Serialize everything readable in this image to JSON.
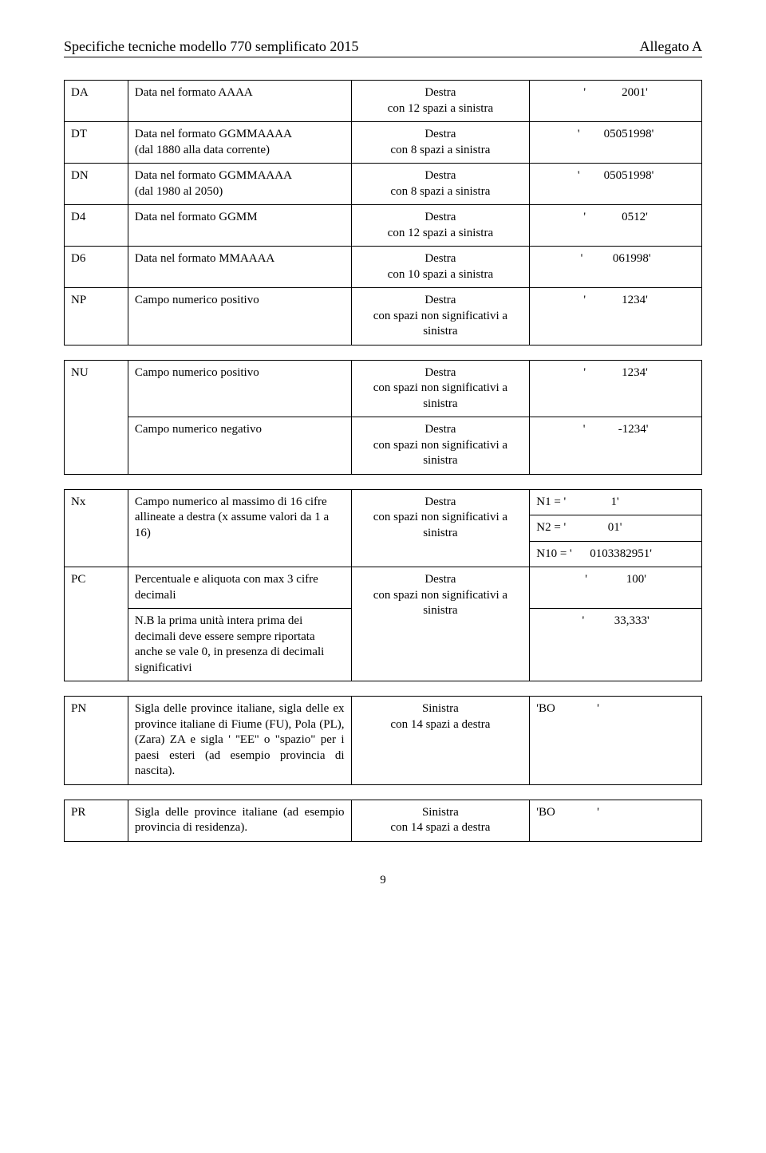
{
  "header": {
    "left": "Specifiche tecniche modello 770 semplificato 2015",
    "right": "Allegato A"
  },
  "rows1": [
    {
      "code": "DA",
      "desc": "Data nel formato AAAA",
      "align": "Destra\ncon 12 spazi a sinistra",
      "ex": "'            2001'"
    },
    {
      "code": "DT",
      "desc": "Data nel formato GGMMAAAA\n(dal 1880 alla data corrente)",
      "align": "Destra\ncon 8 spazi a sinistra",
      "ex": "'        05051998'"
    },
    {
      "code": "DN",
      "desc": "Data nel formato GGMMAAAA\n(dal 1980 al 2050)",
      "align": "Destra\ncon 8 spazi a sinistra",
      "ex": "'        05051998'"
    },
    {
      "code": "D4",
      "desc": "Data nel formato GGMM",
      "align": "Destra\ncon 12 spazi a sinistra",
      "ex": "'            0512'"
    },
    {
      "code": "D6",
      "desc": "Data nel formato MMAAAA",
      "align": "Destra\ncon 10 spazi a sinistra",
      "ex": "'          061998'"
    },
    {
      "code": "NP",
      "desc": "Campo numerico positivo",
      "align": "Destra\ncon spazi non significativi a sinistra",
      "ex": "'            1234'"
    }
  ],
  "rows2": [
    {
      "code": "NU",
      "desc": "Campo numerico positivo",
      "align": "Destra\ncon spazi non significativi a sinistra",
      "ex": "'            1234'"
    },
    {
      "code": "",
      "desc": "Campo numerico negativo",
      "align": "Destra\ncon spazi non significativi a sinistra",
      "ex": "'           -1234'"
    }
  ],
  "rows3": [
    {
      "codeRowspan": 1,
      "code": "Nx",
      "desc": "Campo numerico al massimo di 16 cifre allineate a destra (x assume valori da 1 a 16)",
      "align": "Destra\ncon spazi non significativi a sinistra",
      "exLines": [
        "N1 = '               1'",
        "N2 = '              01'",
        "N10 = '      0103382951'"
      ]
    },
    {
      "codeRowspan": 2,
      "code": "PC",
      "desc": "Percentuale e aliquota con max 3 cifre decimali",
      "alignRowspan": 2,
      "align": "Destra\ncon spazi non significativi a sinistra",
      "ex": "'             100'"
    },
    {
      "desc": "N.B la prima unità intera prima dei decimali deve essere sempre riportata anche se vale 0, in presenza di decimali significativi",
      "ex": "'          33,333'"
    }
  ],
  "rows4": [
    {
      "code": "PN",
      "desc": "Sigla delle province italiane, sigla delle ex province italiane di Fiume (FU), Pola (PL), (Zara) ZA e sigla ' ''EE'' o \"spazio\" per i paesi esteri (ad esempio provincia di nascita).",
      "align": "Sinistra\ncon 14 spazi a destra",
      "ex": "'BO              '"
    }
  ],
  "rows5": [
    {
      "code": "PR",
      "desc": "Sigla delle province italiane (ad esempio provincia di residenza).",
      "align": "Sinistra\ncon 14 spazi a destra",
      "ex": "'BO              '"
    }
  ],
  "pageNumber": "9"
}
